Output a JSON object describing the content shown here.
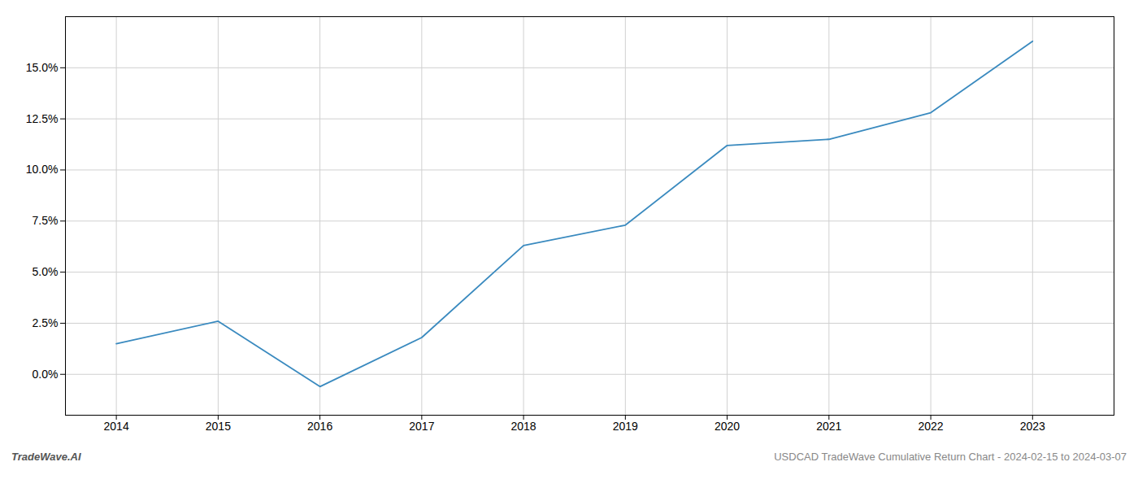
{
  "chart_data": {
    "type": "line",
    "x": [
      2014,
      2015,
      2016,
      2017,
      2018,
      2019,
      2020,
      2021,
      2022,
      2023
    ],
    "values": [
      0.015,
      0.026,
      -0.006,
      0.018,
      0.063,
      0.073,
      0.112,
      0.115,
      0.128,
      0.163
    ],
    "color": "#3a8abf",
    "xlim": [
      2013.5,
      2023.8
    ],
    "xticks": [
      2014,
      2015,
      2016,
      2017,
      2018,
      2019,
      2020,
      2021,
      2022,
      2023
    ],
    "ylim": [
      -0.02,
      0.175
    ],
    "yticks": [
      {
        "value": 0.0,
        "label": "0.0%"
      },
      {
        "value": 0.025,
        "label": "2.5%"
      },
      {
        "value": 0.05,
        "label": "5.0%"
      },
      {
        "value": 0.075,
        "label": "7.5%"
      },
      {
        "value": 0.1,
        "label": "10.0%"
      },
      {
        "value": 0.125,
        "label": "12.5%"
      },
      {
        "value": 0.15,
        "label": "15.0%"
      }
    ],
    "grid": true,
    "annotations": [
      "TradeWave.AI",
      "USDCAD TradeWave Cumulative Return Chart - 2024-02-15 to 2024-03-07"
    ]
  }
}
